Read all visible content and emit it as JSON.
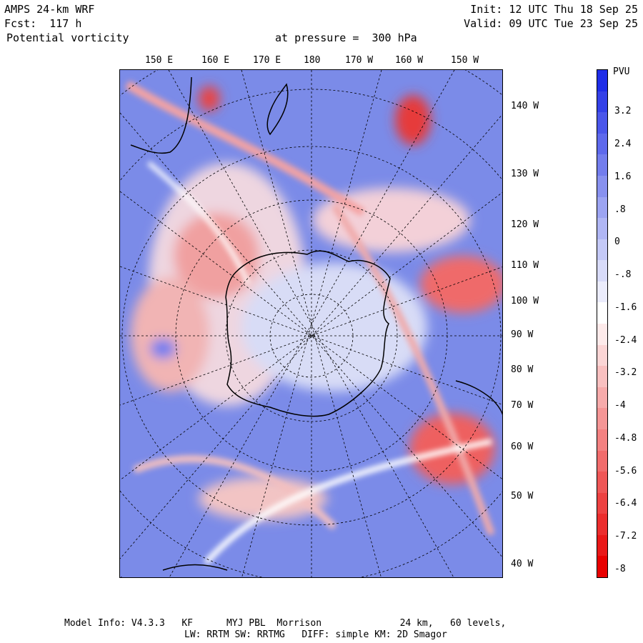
{
  "header": {
    "model": "AMPS 24-km WRF",
    "forecast": "Fcst:  117 h",
    "field": "Potential vorticity",
    "level": "at pressure =  300 hPa",
    "init": "Init: 12 UTC Thu 18 Sep 25",
    "valid": "Valid: 09 UTC Tue 23 Sep 25"
  },
  "top_longitudes": [
    "150 E",
    "160 E",
    "170 E",
    "180",
    "170 W",
    "160 W",
    "150 W"
  ],
  "right_longitudes": [
    "140 W",
    "130 W",
    "120 W",
    "110 W",
    "100 W",
    "90 W",
    "80 W",
    "70 W",
    "60 W",
    "50 W",
    "40 W"
  ],
  "colorbar": {
    "unit": "PVU",
    "labels": [
      "3.2",
      "2.4",
      "1.6",
      ".8",
      "0",
      "-.8",
      "-1.6",
      "-2.4",
      "-3.2",
      "-4",
      "-4.8",
      "-5.6",
      "-6.4",
      "-7.2",
      "-8"
    ],
    "colors": [
      "#1f2de8",
      "#3441e8",
      "#4a56ea",
      "#5e69ec",
      "#737ded",
      "#8891ef",
      "#9ca4f2",
      "#b0b6f4",
      "#c4c9f7",
      "#d8dbf9",
      "#ebecfc",
      "#ffffff",
      "#fdeaea",
      "#fbd5d5",
      "#f9c0c0",
      "#f7abab",
      "#f59696",
      "#f38181",
      "#f16c6c",
      "#ef5757",
      "#ed4242",
      "#eb2d2d",
      "#e91818",
      "#e80000"
    ]
  },
  "footer": {
    "line1": "Model Info: V4.3.3   KF      MYJ PBL  Morrison              24 km,   60 levels,",
    "line2": "LW: RRTM SW: RRTMG   DIFF: simple KM: 2D Smagor"
  }
}
